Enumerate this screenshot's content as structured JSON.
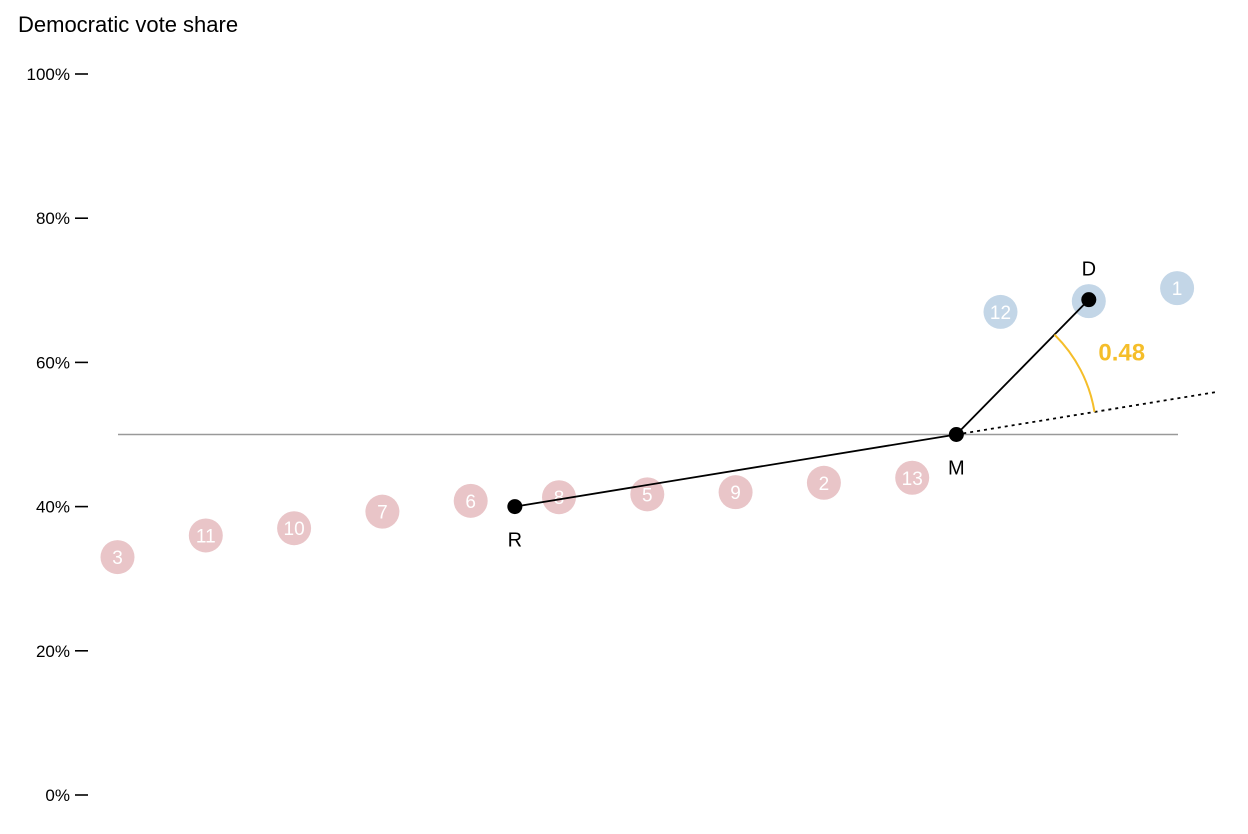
{
  "chart_data": {
    "type": "scatter",
    "title": "Democratic vote share",
    "xlabel": "",
    "ylabel": "",
    "ylim": [
      0,
      100
    ],
    "y_ticks": [
      {
        "value": 0,
        "label": "0%"
      },
      {
        "value": 20,
        "label": "20%"
      },
      {
        "value": 40,
        "label": "40%"
      },
      {
        "value": 60,
        "label": "60%"
      },
      {
        "value": 80,
        "label": "80%"
      },
      {
        "value": 100,
        "label": "100%"
      }
    ],
    "reference_line": 50,
    "districts": [
      {
        "label": "3",
        "rank": 1,
        "share": 33.0,
        "party": "R"
      },
      {
        "label": "11",
        "rank": 2,
        "share": 36.0,
        "party": "R"
      },
      {
        "label": "10",
        "rank": 3,
        "share": 37.0,
        "party": "R"
      },
      {
        "label": "7",
        "rank": 4,
        "share": 39.3,
        "party": "R"
      },
      {
        "label": "6",
        "rank": 5,
        "share": 40.8,
        "party": "R"
      },
      {
        "label": "8",
        "rank": 6,
        "share": 41.3,
        "party": "R"
      },
      {
        "label": "5",
        "rank": 7,
        "share": 41.7,
        "party": "R"
      },
      {
        "label": "9",
        "rank": 8,
        "share": 42.0,
        "party": "R"
      },
      {
        "label": "2",
        "rank": 9,
        "share": 43.3,
        "party": "R"
      },
      {
        "label": "13",
        "rank": 10,
        "share": 44.0,
        "party": "R"
      },
      {
        "label": "12",
        "rank": 11,
        "share": 67.0,
        "party": "D"
      },
      {
        "label": "",
        "rank": 12,
        "share": 68.5,
        "party": "D"
      },
      {
        "label": "1",
        "rank": 13,
        "share": 70.3,
        "party": "D"
      }
    ],
    "summary_points": [
      {
        "label": "R",
        "rank": 5.5,
        "share": 40.0
      },
      {
        "label": "M",
        "rank": 10.5,
        "share": 50.0
      },
      {
        "label": "D",
        "rank": 12,
        "share": 68.7
      }
    ],
    "declination": "0.48",
    "colors": {
      "republican": "#e9c5c8",
      "democratic": "#c3d6e7",
      "angle": "#f5be2a",
      "point": "#000000",
      "reference_line": "#999999"
    }
  }
}
